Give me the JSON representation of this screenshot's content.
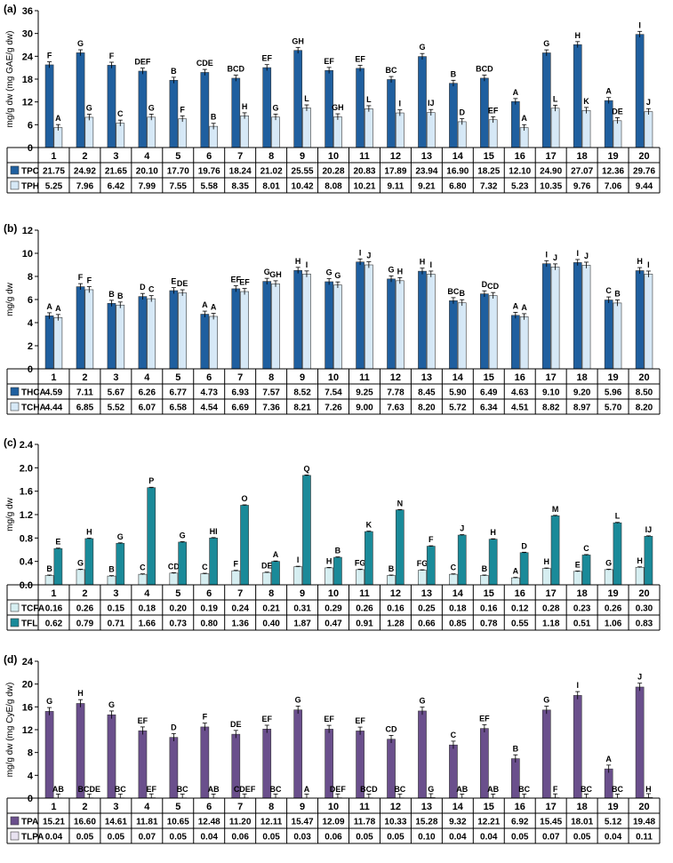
{
  "chart_data": [
    {
      "panel": "(a)",
      "type": "bar",
      "ylabel": "mg/g dw (mg GAE/g dw)",
      "ylim": [
        0,
        36
      ],
      "yticks": [
        "0",
        "6",
        "12",
        "18",
        "24",
        "30",
        "36"
      ],
      "categories": [
        "1",
        "2",
        "3",
        "4",
        "5",
        "6",
        "7",
        "8",
        "9",
        "10",
        "11",
        "12",
        "13",
        "14",
        "15",
        "16",
        "17",
        "18",
        "19",
        "20"
      ],
      "series": [
        {
          "name": "TPC",
          "color": "#1f5f9f",
          "values": [
            21.75,
            24.92,
            21.65,
            20.1,
            17.7,
            19.76,
            18.24,
            21.02,
            25.55,
            20.28,
            20.83,
            17.89,
            23.94,
            16.9,
            18.25,
            12.1,
            24.9,
            27.07,
            12.36,
            29.76
          ],
          "display": [
            "21.75",
            "24.92",
            "21.65",
            "20.10",
            "17.70",
            "19.76",
            "18.24",
            "21.02",
            "25.55",
            "20.28",
            "20.83",
            "17.89",
            "23.94",
            "16.90",
            "18.25",
            "12.10",
            "24.90",
            "27.07",
            "12.36",
            "29.76"
          ],
          "letters": [
            "F",
            "G",
            "F",
            "DEF",
            "B",
            "CDE",
            "BCD",
            "EF",
            "GH",
            "EF",
            "EF",
            "BC",
            "G",
            "B",
            "BCD",
            "A",
            "G",
            "H",
            "A",
            "I"
          ]
        },
        {
          "name": "TPH",
          "color": "#d6e8f6",
          "values": [
            5.25,
            7.96,
            6.42,
            7.99,
            7.55,
            5.58,
            8.35,
            8.01,
            10.42,
            8.08,
            10.21,
            9.11,
            9.21,
            6.8,
            7.32,
            5.23,
            10.35,
            9.76,
            7.06,
            9.44
          ],
          "display": [
            "5.25",
            "7.96",
            "6.42",
            "7.99",
            "7.55",
            "5.58",
            "8.35",
            "8.01",
            "10.42",
            "8.08",
            "10.21",
            "9.11",
            "9.21",
            "6.80",
            "7.32",
            "5.23",
            "10.35",
            "9.76",
            "7.06",
            "9.44"
          ],
          "letters": [
            "A",
            "G",
            "C",
            "G",
            "F",
            "B",
            "H",
            "G",
            "L",
            "GH",
            "L",
            "I",
            "IJ",
            "D",
            "EF",
            "A",
            "L",
            "K",
            "DE",
            "J"
          ]
        }
      ]
    },
    {
      "panel": "(b)",
      "type": "bar",
      "ylabel": "mg/g dw",
      "ylim": [
        0,
        12
      ],
      "yticks": [
        "0",
        "2",
        "4",
        "6",
        "8",
        "10",
        "12"
      ],
      "categories": [
        "1",
        "2",
        "3",
        "4",
        "5",
        "6",
        "7",
        "8",
        "9",
        "10",
        "11",
        "12",
        "13",
        "14",
        "15",
        "16",
        "17",
        "18",
        "19",
        "20"
      ],
      "series": [
        {
          "name": "THCA",
          "color": "#1f5f9f",
          "values": [
            4.59,
            7.11,
            5.67,
            6.26,
            6.77,
            4.73,
            6.93,
            7.57,
            8.52,
            7.54,
            9.25,
            7.78,
            8.45,
            5.9,
            6.49,
            4.63,
            9.1,
            9.2,
            5.96,
            8.5
          ],
          "display": [
            "4.59",
            "7.11",
            "5.67",
            "6.26",
            "6.77",
            "4.73",
            "6.93",
            "7.57",
            "8.52",
            "7.54",
            "9.25",
            "7.78",
            "8.45",
            "5.90",
            "6.49",
            "4.63",
            "9.10",
            "9.20",
            "5.96",
            "8.50"
          ],
          "letters": [
            "A",
            "F",
            "B",
            "D",
            "E",
            "A",
            "EF",
            "G",
            "H",
            "G",
            "I",
            "G",
            "H",
            "BC",
            "D",
            "A",
            "I",
            "I",
            "C",
            "H"
          ]
        },
        {
          "name": "TCHA",
          "color": "#d6e8f6",
          "values": [
            4.44,
            6.85,
            5.52,
            6.07,
            6.58,
            4.54,
            6.69,
            7.36,
            8.21,
            7.26,
            9.0,
            7.63,
            8.2,
            5.72,
            6.34,
            4.51,
            8.82,
            8.97,
            5.7,
            8.2
          ],
          "display": [
            "4.44",
            "6.85",
            "5.52",
            "6.07",
            "6.58",
            "4.54",
            "6.69",
            "7.36",
            "8.21",
            "7.26",
            "9.00",
            "7.63",
            "8.20",
            "5.72",
            "6.34",
            "4.51",
            "8.82",
            "8.97",
            "5.70",
            "8.20"
          ],
          "letters": [
            "A",
            "F",
            "B",
            "C",
            "DE",
            "A",
            "EF",
            "GH",
            "I",
            "G",
            "J",
            "H",
            "I",
            "B",
            "CD",
            "A",
            "J",
            "J",
            "B",
            "I"
          ]
        }
      ]
    },
    {
      "panel": "(c)",
      "type": "bar",
      "ylabel": "mg/g dw",
      "ylim": [
        0,
        2.4
      ],
      "yticks": [
        "0.0",
        "0.4",
        "0.8",
        "1.2",
        "1.6",
        "2.0",
        "2.4"
      ],
      "categories": [
        "1",
        "2",
        "3",
        "4",
        "5",
        "6",
        "7",
        "8",
        "9",
        "10",
        "11",
        "12",
        "13",
        "14",
        "15",
        "16",
        "17",
        "18",
        "19",
        "20"
      ],
      "series": [
        {
          "name": "TCFA",
          "color": "#d6eef1",
          "values": [
            0.16,
            0.26,
            0.15,
            0.18,
            0.2,
            0.19,
            0.24,
            0.21,
            0.31,
            0.29,
            0.26,
            0.16,
            0.25,
            0.18,
            0.16,
            0.12,
            0.28,
            0.23,
            0.26,
            0.3
          ],
          "display": [
            "0.16",
            "0.26",
            "0.15",
            "0.18",
            "0.20",
            "0.19",
            "0.24",
            "0.21",
            "0.31",
            "0.29",
            "0.26",
            "0.16",
            "0.25",
            "0.18",
            "0.16",
            "0.12",
            "0.28",
            "0.23",
            "0.26",
            "0.30"
          ],
          "letters": [
            "B",
            "G",
            "B",
            "C",
            "CD",
            "C",
            "F",
            "DE",
            "I",
            "H",
            "FG",
            "B",
            "FG",
            "C",
            "B",
            "A",
            "H",
            "E",
            "G",
            "H"
          ]
        },
        {
          "name": "TFL",
          "color": "#1a8a99",
          "values": [
            0.62,
            0.79,
            0.71,
            1.66,
            0.73,
            0.8,
            1.36,
            0.4,
            1.87,
            0.47,
            0.91,
            1.28,
            0.66,
            0.85,
            0.78,
            0.55,
            1.18,
            0.51,
            1.06,
            0.83
          ],
          "display": [
            "0.62",
            "0.79",
            "0.71",
            "1.66",
            "0.73",
            "0.80",
            "1.36",
            "0.40",
            "1.87",
            "0.47",
            "0.91",
            "1.28",
            "0.66",
            "0.85",
            "0.78",
            "0.55",
            "1.18",
            "0.51",
            "1.06",
            "0.83"
          ],
          "letters": [
            "E",
            "H",
            "G",
            "P",
            "G",
            "HI",
            "O",
            "A",
            "Q",
            "B",
            "K",
            "N",
            "F",
            "J",
            "H",
            "D",
            "M",
            "C",
            "L",
            "IJ"
          ]
        }
      ]
    },
    {
      "panel": "(d)",
      "type": "bar",
      "ylabel": "mg/g dw (mg CyE/g dw)",
      "ylim": [
        0,
        24
      ],
      "yticks": [
        "0",
        "4",
        "8",
        "12",
        "16",
        "20",
        "24"
      ],
      "categories": [
        "1",
        "2",
        "3",
        "4",
        "5",
        "6",
        "7",
        "8",
        "9",
        "10",
        "11",
        "12",
        "13",
        "14",
        "15",
        "16",
        "17",
        "18",
        "19",
        "20"
      ],
      "series": [
        {
          "name": "TPA",
          "color": "#6a4f8c",
          "values": [
            15.21,
            16.6,
            14.61,
            11.81,
            10.65,
            12.48,
            11.2,
            12.11,
            15.47,
            12.09,
            11.78,
            10.33,
            15.28,
            9.32,
            12.21,
            6.92,
            15.45,
            18.01,
            5.12,
            19.48
          ],
          "display": [
            "15.21",
            "16.60",
            "14.61",
            "11.81",
            "10.65",
            "12.48",
            "11.20",
            "12.11",
            "15.47",
            "12.09",
            "11.78",
            "10.33",
            "15.28",
            "9.32",
            "12.21",
            "6.92",
            "15.45",
            "18.01",
            "5.12",
            "19.48"
          ],
          "letters": [
            "G",
            "H",
            "G",
            "EF",
            "D",
            "F",
            "DE",
            "EF",
            "G",
            "EF",
            "EF",
            "CD",
            "G",
            "C",
            "EF",
            "B",
            "G",
            "I",
            "A",
            "J"
          ]
        },
        {
          "name": "TLPA",
          "color": "#e8e2f0",
          "values": [
            0.04,
            0.05,
            0.05,
            0.07,
            0.05,
            0.04,
            0.06,
            0.05,
            0.03,
            0.06,
            0.05,
            0.05,
            0.1,
            0.04,
            0.04,
            0.05,
            0.07,
            0.05,
            0.04,
            0.11
          ],
          "display": [
            "0.04",
            "0.05",
            "0.05",
            "0.07",
            "0.05",
            "0.04",
            "0.06",
            "0.05",
            "0.03",
            "0.06",
            "0.05",
            "0.05",
            "0.10",
            "0.04",
            "0.04",
            "0.05",
            "0.07",
            "0.05",
            "0.04",
            "0.11"
          ],
          "letters": [
            "AB",
            "BCDE",
            "BC",
            "EF",
            "BC",
            "AB",
            "CDEF",
            "BC",
            "A",
            "DEF",
            "BCD",
            "BC",
            "G",
            "AB",
            "AB",
            "BC",
            "F",
            "BC",
            "BC",
            "H"
          ]
        }
      ]
    }
  ]
}
